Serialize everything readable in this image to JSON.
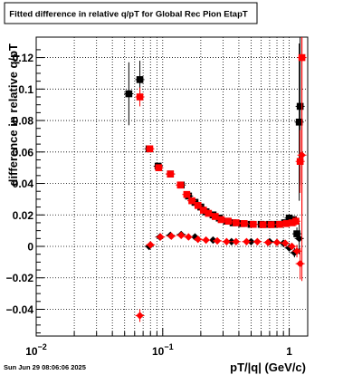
{
  "title": "Fitted difference in relative q/pT for Global Rec Pion EtapT",
  "timestamp": "Sun Jun 29 08:06:06 2025",
  "chart_data": {
    "type": "scatter",
    "title": "Fitted difference in relative q/pT for Global Rec Pion EtapT",
    "xlabel": "pT/|q| (GeV/c)",
    "ylabel": "difference in relative q/pT",
    "x_scale": "log",
    "xlim": [
      0.01,
      1.4
    ],
    "ylim": [
      -0.057,
      0.133
    ],
    "x_ticks": [
      {
        "value": 0.01,
        "label": "10^-2"
      },
      {
        "value": 0.1,
        "label": "10^-1"
      },
      {
        "value": 1,
        "label": "1"
      }
    ],
    "y_ticks": [
      {
        "value": -0.04,
        "label": "−0.04"
      },
      {
        "value": -0.02,
        "label": "−0.02"
      },
      {
        "value": 0,
        "label": "0"
      },
      {
        "value": 0.02,
        "label": "0.02"
      },
      {
        "value": 0.04,
        "label": "0.04"
      },
      {
        "value": 0.06,
        "label": "0.06"
      },
      {
        "value": 0.08,
        "label": "0.08"
      },
      {
        "value": 0.1,
        "label": "0.1"
      },
      {
        "value": 0.12,
        "label": "0.12"
      }
    ],
    "grid": true,
    "colors": {
      "black_series": "#000000",
      "red_series": "#ff0000"
    },
    "series": [
      {
        "marker": "square",
        "color": "#000000",
        "points": [
          {
            "x": 0.054,
            "y": 0.097,
            "yerr": 0.02
          },
          {
            "x": 0.066,
            "y": 0.106,
            "yerr": 0.012
          },
          {
            "x": 0.078,
            "y": 0.062,
            "yerr": 0.002
          },
          {
            "x": 0.092,
            "y": 0.051,
            "yerr": 0.002
          },
          {
            "x": 0.115,
            "y": 0.046,
            "yerr": 0.002
          },
          {
            "x": 0.14,
            "y": 0.039,
            "yerr": 0.002
          },
          {
            "x": 0.16,
            "y": 0.032,
            "yerr": 0.0015
          },
          {
            "x": 0.18,
            "y": 0.028,
            "yerr": 0.001
          },
          {
            "x": 0.2,
            "y": 0.025,
            "yerr": 0.001
          },
          {
            "x": 0.22,
            "y": 0.022,
            "yerr": 0.001
          },
          {
            "x": 0.25,
            "y": 0.02,
            "yerr": 0.001
          },
          {
            "x": 0.28,
            "y": 0.018,
            "yerr": 0.001
          },
          {
            "x": 0.32,
            "y": 0.016,
            "yerr": 0.001
          },
          {
            "x": 0.36,
            "y": 0.015,
            "yerr": 0.001
          },
          {
            "x": 0.42,
            "y": 0.0145,
            "yerr": 0.001
          },
          {
            "x": 0.5,
            "y": 0.014,
            "yerr": 0.001
          },
          {
            "x": 0.6,
            "y": 0.014,
            "yerr": 0.001
          },
          {
            "x": 0.7,
            "y": 0.014,
            "yerr": 0.001
          },
          {
            "x": 0.8,
            "y": 0.014,
            "yerr": 0.001
          },
          {
            "x": 0.92,
            "y": 0.015,
            "yerr": 0.001
          },
          {
            "x": 1.0,
            "y": 0.018,
            "yerr": 0.002
          },
          {
            "x": 1.08,
            "y": 0.017,
            "yerr": 0.002
          },
          {
            "x": 1.15,
            "y": 0.008,
            "yerr": 0.004
          },
          {
            "x": 1.2,
            "y": 0.079,
            "yerr": 0.05
          },
          {
            "x": 1.22,
            "y": 0.089,
            "yerr": 0.05
          }
        ]
      },
      {
        "marker": "diamond",
        "color": "#000000",
        "points": [
          {
            "x": 0.078,
            "y": 0.0,
            "yerr": 0.002
          },
          {
            "x": 0.095,
            "y": 0.006,
            "yerr": 0.001
          },
          {
            "x": 0.115,
            "y": 0.007,
            "yerr": 0.001
          },
          {
            "x": 0.14,
            "y": 0.0075,
            "yerr": 0.001
          },
          {
            "x": 0.18,
            "y": 0.006,
            "yerr": 0.001
          },
          {
            "x": 0.25,
            "y": 0.004,
            "yerr": 0.001
          },
          {
            "x": 0.35,
            "y": 0.003,
            "yerr": 0.001
          },
          {
            "x": 0.5,
            "y": 0.003,
            "yerr": 0.001
          },
          {
            "x": 0.7,
            "y": 0.003,
            "yerr": 0.001
          },
          {
            "x": 0.9,
            "y": 0.002,
            "yerr": 0.001
          },
          {
            "x": 1.0,
            "y": -0.001,
            "yerr": 0.002
          },
          {
            "x": 1.1,
            "y": -0.004,
            "yerr": 0.003
          },
          {
            "x": 1.2,
            "y": 0.005,
            "yerr": 0.01
          }
        ]
      },
      {
        "marker": "square",
        "color": "#ff0000",
        "points": [
          {
            "x": 0.066,
            "y": 0.095,
            "yerr": 0.006
          },
          {
            "x": 0.079,
            "y": 0.062,
            "yerr": 0.002
          },
          {
            "x": 0.093,
            "y": 0.05,
            "yerr": 0.002
          },
          {
            "x": 0.115,
            "y": 0.046,
            "yerr": 0.002
          },
          {
            "x": 0.138,
            "y": 0.039,
            "yerr": 0.002
          },
          {
            "x": 0.155,
            "y": 0.033,
            "yerr": 0.0015
          },
          {
            "x": 0.17,
            "y": 0.029,
            "yerr": 0.001
          },
          {
            "x": 0.19,
            "y": 0.026,
            "yerr": 0.001
          },
          {
            "x": 0.21,
            "y": 0.023,
            "yerr": 0.001
          },
          {
            "x": 0.23,
            "y": 0.021,
            "yerr": 0.001
          },
          {
            "x": 0.26,
            "y": 0.019,
            "yerr": 0.001
          },
          {
            "x": 0.29,
            "y": 0.017,
            "yerr": 0.001
          },
          {
            "x": 0.33,
            "y": 0.016,
            "yerr": 0.001
          },
          {
            "x": 0.38,
            "y": 0.015,
            "yerr": 0.001
          },
          {
            "x": 0.44,
            "y": 0.0145,
            "yerr": 0.001
          },
          {
            "x": 0.52,
            "y": 0.014,
            "yerr": 0.001
          },
          {
            "x": 0.62,
            "y": 0.0138,
            "yerr": 0.001
          },
          {
            "x": 0.72,
            "y": 0.0138,
            "yerr": 0.001
          },
          {
            "x": 0.84,
            "y": 0.014,
            "yerr": 0.001
          },
          {
            "x": 0.95,
            "y": 0.0145,
            "yerr": 0.001
          },
          {
            "x": 1.05,
            "y": 0.015,
            "yerr": 0.002
          },
          {
            "x": 1.13,
            "y": 0.016,
            "yerr": 0.003
          },
          {
            "x": 1.22,
            "y": 0.054,
            "yerr": 0.02
          },
          {
            "x": 1.26,
            "y": 0.12,
            "yerr": 0.1
          }
        ]
      },
      {
        "marker": "diamond",
        "color": "#ff0000",
        "points": [
          {
            "x": 0.066,
            "y": -0.044,
            "yerr": 0.004
          },
          {
            "x": 0.08,
            "y": 0.001,
            "yerr": 0.002
          },
          {
            "x": 0.096,
            "y": 0.006,
            "yerr": 0.001
          },
          {
            "x": 0.117,
            "y": 0.0065,
            "yerr": 0.001
          },
          {
            "x": 0.14,
            "y": 0.007,
            "yerr": 0.001
          },
          {
            "x": 0.16,
            "y": 0.006,
            "yerr": 0.001
          },
          {
            "x": 0.19,
            "y": 0.0045,
            "yerr": 0.001
          },
          {
            "x": 0.22,
            "y": 0.004,
            "yerr": 0.001
          },
          {
            "x": 0.27,
            "y": 0.0035,
            "yerr": 0.001
          },
          {
            "x": 0.32,
            "y": 0.003,
            "yerr": 0.001
          },
          {
            "x": 0.38,
            "y": 0.003,
            "yerr": 0.001
          },
          {
            "x": 0.46,
            "y": 0.003,
            "yerr": 0.001
          },
          {
            "x": 0.56,
            "y": 0.003,
            "yerr": 0.001
          },
          {
            "x": 0.68,
            "y": 0.0025,
            "yerr": 0.001
          },
          {
            "x": 0.8,
            "y": 0.0025,
            "yerr": 0.001
          },
          {
            "x": 0.93,
            "y": 0.002,
            "yerr": 0.001
          },
          {
            "x": 1.05,
            "y": 0.0,
            "yerr": 0.002
          },
          {
            "x": 1.15,
            "y": -0.003,
            "yerr": 0.004
          },
          {
            "x": 1.22,
            "y": -0.011,
            "yerr": 0.01
          },
          {
            "x": 1.26,
            "y": 0.058,
            "yerr": 0.08
          }
        ]
      }
    ]
  }
}
